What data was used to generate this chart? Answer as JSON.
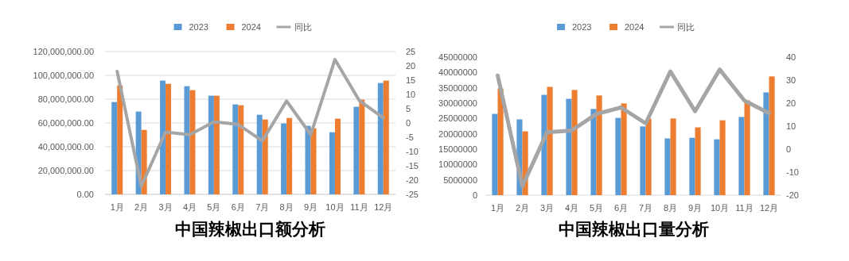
{
  "chart_data": [
    {
      "type": "bar",
      "title": "中国辣椒出口额分析",
      "categories": [
        "1月",
        "2月",
        "3月",
        "4月",
        "5月",
        "6月",
        "7月",
        "8月",
        "9月",
        "10月",
        "11月",
        "12月"
      ],
      "series": [
        {
          "name": "2023",
          "color": "#5b9bd5",
          "values": [
            77600000,
            69600000,
            95600000,
            90900000,
            82900000,
            75600000,
            66900000,
            59600000,
            57600000,
            52200000,
            73600000,
            93600000
          ]
        },
        {
          "name": "2024",
          "color": "#ed7d31",
          "values": [
            91600000,
            54200000,
            92900000,
            87600000,
            82900000,
            74900000,
            62900000,
            64200000,
            55600000,
            63600000,
            79600000,
            95600000
          ]
        },
        {
          "name": "同比",
          "type": "line",
          "axis": "y2",
          "color": "#a5a5a5",
          "values": [
            18.1,
            -22.1,
            -3.2,
            -4.1,
            0.4,
            -0.5,
            -6.3,
            7.7,
            -4.1,
            22.2,
            7.9,
            1.8
          ]
        }
      ],
      "ylim": [
        0,
        120000000
      ],
      "yticks": [
        {
          "value": 0,
          "label": "0.00"
        },
        {
          "value": 20000000,
          "label": "20,000,000.00"
        },
        {
          "value": 40000000,
          "label": "40,000,000.00"
        },
        {
          "value": 60000000,
          "label": "60,000,000.00"
        },
        {
          "value": 80000000,
          "label": "80,000,000.00"
        },
        {
          "value": 100000000,
          "label": "100,000,000.00"
        },
        {
          "value": 120000000,
          "label": "120,000,000.00"
        }
      ],
      "y2lim": [
        -25,
        25
      ],
      "y2ticks": [
        -25,
        -20,
        -15,
        -10,
        -5,
        0,
        5,
        10,
        15,
        20,
        25
      ],
      "grid": "y",
      "legend": "top"
    },
    {
      "type": "bar",
      "title": "中国辣椒出口量分析",
      "categories": [
        "1月",
        "2月",
        "3月",
        "4月",
        "5月",
        "6月",
        "7月",
        "8月",
        "9月",
        "10月",
        "11月",
        "12月"
      ],
      "series": [
        {
          "name": "2023",
          "color": "#5b9bd5",
          "values": [
            26500000,
            24700000,
            32700000,
            31400000,
            28100000,
            25200000,
            22400000,
            18500000,
            18700000,
            18200000,
            25500000,
            33500000
          ]
        },
        {
          "name": "2024",
          "color": "#ed7d31",
          "values": [
            34800000,
            20800000,
            35300000,
            34300000,
            32500000,
            29900000,
            25000000,
            25000000,
            22100000,
            24400000,
            30900000,
            38700000
          ]
        },
        {
          "name": "同比",
          "type": "line",
          "axis": "y2",
          "color": "#a5a5a5",
          "values": [
            32.0,
            -16.1,
            7.3,
            8.1,
            15.3,
            18.1,
            11.2,
            33.8,
            16.5,
            34.6,
            21.1,
            15.6
          ]
        }
      ],
      "ylim": [
        0,
        45000000
      ],
      "yticks": [
        0,
        5000000,
        10000000,
        15000000,
        20000000,
        25000000,
        30000000,
        35000000,
        40000000,
        45000000
      ],
      "y2lim": [
        -20,
        40
      ],
      "y2ticks": [
        -20,
        -10,
        0,
        10,
        20,
        30,
        40
      ],
      "legend": "top"
    }
  ]
}
